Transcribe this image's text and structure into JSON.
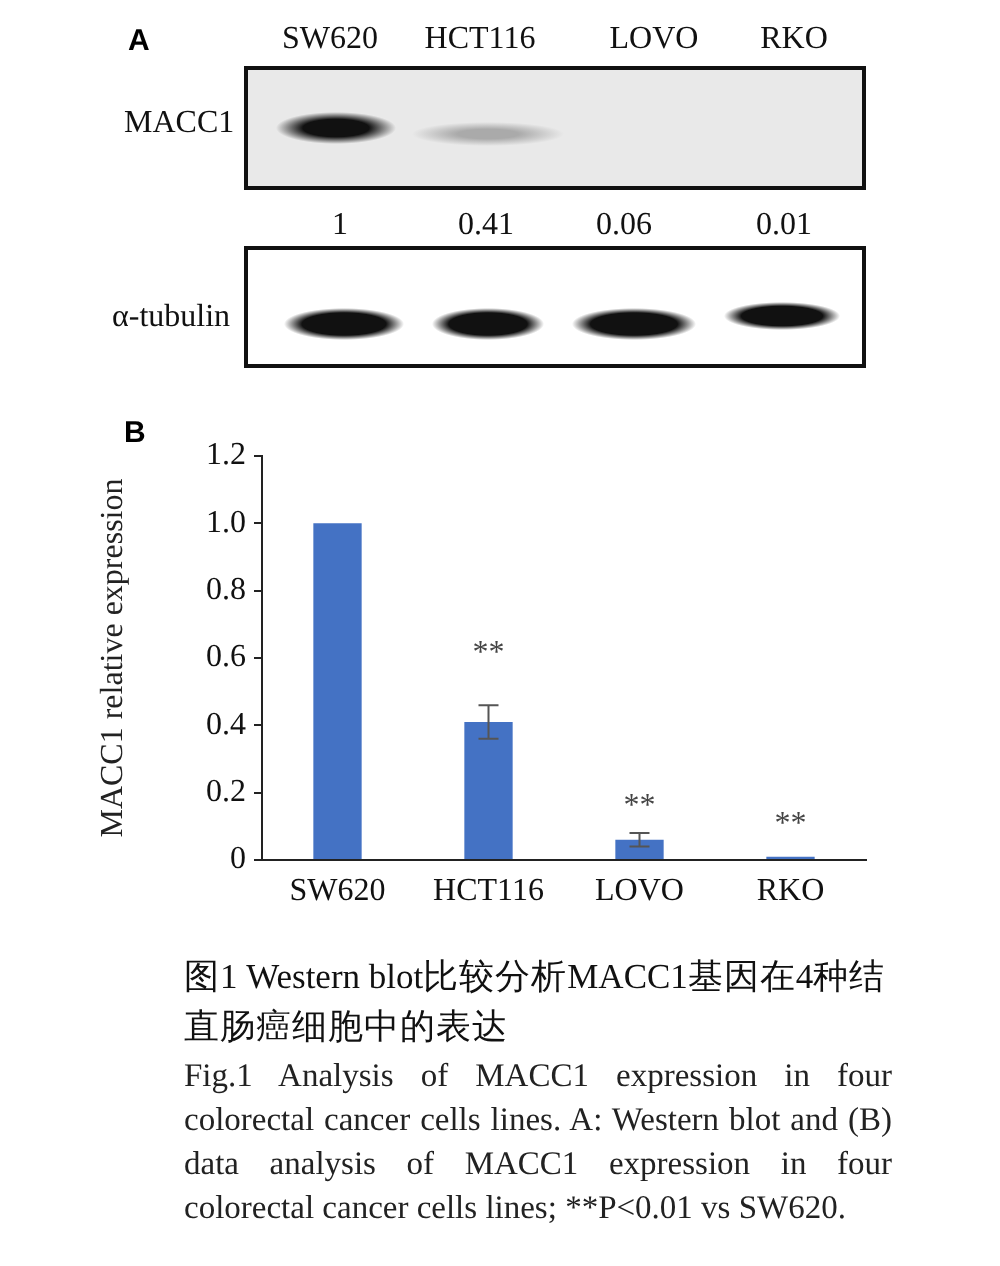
{
  "chart_data": {
    "type": "bar",
    "categories": [
      "SW620",
      "HCT116",
      "LOVO",
      "RKO"
    ],
    "values": [
      1,
      0.41,
      0.06,
      0.01
    ],
    "color": "#4472c4",
    "errors": [
      null,
      0.05,
      0.02,
      null
    ],
    "value_labels": [
      "1",
      "0.41",
      "0.06",
      "0.01"
    ],
    "ylabel": "MACC1 relative expression",
    "ylim": [
      0,
      1.2
    ],
    "yticks": [
      0,
      0.2,
      0.4,
      0.6,
      0.8,
      {
        "value": 1,
        "label": "1.0"
      },
      1.2
    ],
    "annotations": [
      "A",
      "MACC1",
      "α-tubulin",
      "B",
      "**",
      "**",
      "**",
      "图1 Western blot比较分析MACC1基因在4种结直肠癌细胞中的表达",
      "Fig.1 Analysis of MACC1 expression in four colorectal cancer cells lines. A: Western blot and (B) data analysis of MACC1 expression in four colorectal cancer cells lines; **P<0.01 vs SW620."
    ]
  }
}
